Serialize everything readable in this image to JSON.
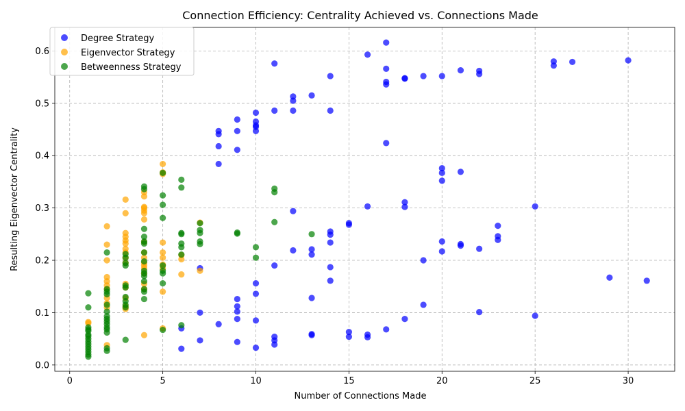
{
  "chart_data": {
    "type": "scatter",
    "title": "Connection Efficiency: Centrality Achieved vs. Connections Made",
    "xlabel": "Number of Connections Made",
    "ylabel": "Resulting Eigenvector Centrality",
    "xlim": [
      -0.8,
      32.5
    ],
    "ylim": [
      -0.012,
      0.645
    ],
    "xticks": [
      0,
      5,
      10,
      15,
      20,
      25,
      30
    ],
    "yticks": [
      0.0,
      0.1,
      0.2,
      0.3,
      0.4,
      0.5,
      0.6
    ],
    "xtick_labels": [
      "0",
      "5",
      "10",
      "15",
      "20",
      "25",
      "30"
    ],
    "ytick_labels": [
      "0.0",
      "0.1",
      "0.2",
      "0.3",
      "0.4",
      "0.5",
      "0.6"
    ],
    "grid": true,
    "legend_position": "top-left",
    "series": [
      {
        "name": "Degree Strategy",
        "color": "#0000ff",
        "points": [
          [
            6,
            0.031
          ],
          [
            6,
            0.07
          ],
          [
            7,
            0.047
          ],
          [
            7,
            0.1
          ],
          [
            7,
            0.185
          ],
          [
            8,
            0.078
          ],
          [
            8,
            0.384
          ],
          [
            8,
            0.418
          ],
          [
            8,
            0.441
          ],
          [
            8,
            0.447
          ],
          [
            9,
            0.044
          ],
          [
            9,
            0.088
          ],
          [
            9,
            0.102
          ],
          [
            9,
            0.112
          ],
          [
            9,
            0.126
          ],
          [
            9,
            0.411
          ],
          [
            9,
            0.447
          ],
          [
            9,
            0.469
          ],
          [
            10,
            0.033
          ],
          [
            10,
            0.085
          ],
          [
            10,
            0.136
          ],
          [
            10,
            0.156
          ],
          [
            10,
            0.447
          ],
          [
            10,
            0.455
          ],
          [
            10,
            0.458
          ],
          [
            10,
            0.465
          ],
          [
            10,
            0.482
          ],
          [
            11,
            0.039
          ],
          [
            11,
            0.047
          ],
          [
            11,
            0.054
          ],
          [
            11,
            0.19
          ],
          [
            11,
            0.486
          ],
          [
            11,
            0.576
          ],
          [
            12,
            0.219
          ],
          [
            12,
            0.294
          ],
          [
            12,
            0.486
          ],
          [
            12,
            0.505
          ],
          [
            12,
            0.513
          ],
          [
            13,
            0.057
          ],
          [
            13,
            0.059
          ],
          [
            13,
            0.128
          ],
          [
            13,
            0.211
          ],
          [
            13,
            0.221
          ],
          [
            13,
            0.515
          ],
          [
            14,
            0.161
          ],
          [
            14,
            0.187
          ],
          [
            14,
            0.234
          ],
          [
            14,
            0.249
          ],
          [
            14,
            0.255
          ],
          [
            14,
            0.486
          ],
          [
            14,
            0.552
          ],
          [
            15,
            0.054
          ],
          [
            15,
            0.063
          ],
          [
            15,
            0.268
          ],
          [
            15,
            0.271
          ],
          [
            16,
            0.053
          ],
          [
            16,
            0.058
          ],
          [
            16,
            0.303
          ],
          [
            16,
            0.593
          ],
          [
            17,
            0.068
          ],
          [
            17,
            0.424
          ],
          [
            17,
            0.536
          ],
          [
            17,
            0.541
          ],
          [
            17,
            0.566
          ],
          [
            17,
            0.616
          ],
          [
            18,
            0.088
          ],
          [
            18,
            0.302
          ],
          [
            18,
            0.311
          ],
          [
            18,
            0.547
          ],
          [
            18,
            0.548
          ],
          [
            19,
            0.115
          ],
          [
            19,
            0.2
          ],
          [
            19,
            0.552
          ],
          [
            20,
            0.217
          ],
          [
            20,
            0.236
          ],
          [
            20,
            0.352
          ],
          [
            20,
            0.367
          ],
          [
            20,
            0.376
          ],
          [
            20,
            0.552
          ],
          [
            21,
            0.228
          ],
          [
            21,
            0.231
          ],
          [
            21,
            0.369
          ],
          [
            21,
            0.563
          ],
          [
            22,
            0.101
          ],
          [
            22,
            0.222
          ],
          [
            22,
            0.556
          ],
          [
            22,
            0.562
          ],
          [
            23,
            0.239
          ],
          [
            23,
            0.246
          ],
          [
            23,
            0.266
          ],
          [
            25,
            0.094
          ],
          [
            25,
            0.303
          ],
          [
            26,
            0.572
          ],
          [
            26,
            0.58
          ],
          [
            27,
            0.579
          ],
          [
            29,
            0.167
          ],
          [
            30,
            0.582
          ],
          [
            31,
            0.161
          ]
        ]
      },
      {
        "name": "Eigenvector Strategy",
        "color": "#ffa500",
        "points": [
          [
            1,
            0.082
          ],
          [
            1,
            0.08
          ],
          [
            2,
            0.038
          ],
          [
            2,
            0.11
          ],
          [
            2,
            0.118
          ],
          [
            2,
            0.128
          ],
          [
            2,
            0.145
          ],
          [
            2,
            0.152
          ],
          [
            2,
            0.16
          ],
          [
            2,
            0.168
          ],
          [
            2,
            0.2
          ],
          [
            2,
            0.23
          ],
          [
            2,
            0.265
          ],
          [
            3,
            0.107
          ],
          [
            3,
            0.112
          ],
          [
            3,
            0.128
          ],
          [
            3,
            0.148
          ],
          [
            3,
            0.155
          ],
          [
            3,
            0.195
          ],
          [
            3,
            0.205
          ],
          [
            3,
            0.215
          ],
          [
            3,
            0.222
          ],
          [
            3,
            0.232
          ],
          [
            3,
            0.238
          ],
          [
            3,
            0.245
          ],
          [
            3,
            0.252
          ],
          [
            3,
            0.29
          ],
          [
            3,
            0.316
          ],
          [
            4,
            0.057
          ],
          [
            4,
            0.145
          ],
          [
            4,
            0.155
          ],
          [
            4,
            0.175
          ],
          [
            4,
            0.185
          ],
          [
            4,
            0.19
          ],
          [
            4,
            0.195
          ],
          [
            4,
            0.205
          ],
          [
            4,
            0.215
          ],
          [
            4,
            0.235
          ],
          [
            4,
            0.278
          ],
          [
            4,
            0.29
          ],
          [
            4,
            0.295
          ],
          [
            4,
            0.3
          ],
          [
            4,
            0.302
          ],
          [
            4,
            0.322
          ],
          [
            4,
            0.33
          ],
          [
            5,
            0.07
          ],
          [
            5,
            0.14
          ],
          [
            5,
            0.185
          ],
          [
            5,
            0.192
          ],
          [
            5,
            0.205
          ],
          [
            5,
            0.215
          ],
          [
            5,
            0.234
          ],
          [
            5,
            0.365
          ],
          [
            5,
            0.368
          ],
          [
            5,
            0.384
          ],
          [
            6,
            0.173
          ],
          [
            6,
            0.202
          ],
          [
            6,
            0.21
          ],
          [
            7,
            0.18
          ],
          [
            7,
            0.272
          ]
        ]
      },
      {
        "name": "Betweenness Strategy",
        "color": "#008000",
        "points": [
          [
            1,
            0.016
          ],
          [
            1,
            0.02
          ],
          [
            1,
            0.025
          ],
          [
            1,
            0.03
          ],
          [
            1,
            0.035
          ],
          [
            1,
            0.04
          ],
          [
            1,
            0.045
          ],
          [
            1,
            0.05
          ],
          [
            1,
            0.055
          ],
          [
            1,
            0.058
          ],
          [
            1,
            0.065
          ],
          [
            1,
            0.068
          ],
          [
            1,
            0.072
          ],
          [
            1,
            0.11
          ],
          [
            1,
            0.137
          ],
          [
            2,
            0.027
          ],
          [
            2,
            0.032
          ],
          [
            2,
            0.062
          ],
          [
            2,
            0.068
          ],
          [
            2,
            0.072
          ],
          [
            2,
            0.078
          ],
          [
            2,
            0.083
          ],
          [
            2,
            0.088
          ],
          [
            2,
            0.093
          ],
          [
            2,
            0.102
          ],
          [
            2,
            0.115
          ],
          [
            2,
            0.135
          ],
          [
            2,
            0.14
          ],
          [
            2,
            0.145
          ],
          [
            2,
            0.215
          ],
          [
            3,
            0.048
          ],
          [
            3,
            0.11
          ],
          [
            3,
            0.115
          ],
          [
            3,
            0.122
          ],
          [
            3,
            0.13
          ],
          [
            3,
            0.148
          ],
          [
            3,
            0.152
          ],
          [
            3,
            0.19
          ],
          [
            3,
            0.195
          ],
          [
            3,
            0.205
          ],
          [
            3,
            0.212
          ],
          [
            4,
            0.126
          ],
          [
            4,
            0.14
          ],
          [
            4,
            0.145
          ],
          [
            4,
            0.16
          ],
          [
            4,
            0.17
          ],
          [
            4,
            0.175
          ],
          [
            4,
            0.18
          ],
          [
            4,
            0.198
          ],
          [
            4,
            0.215
          ],
          [
            4,
            0.232
          ],
          [
            4,
            0.236
          ],
          [
            4,
            0.245
          ],
          [
            4,
            0.26
          ],
          [
            4,
            0.336
          ],
          [
            4,
            0.341
          ],
          [
            5,
            0.067
          ],
          [
            5,
            0.156
          ],
          [
            5,
            0.175
          ],
          [
            5,
            0.18
          ],
          [
            5,
            0.19
          ],
          [
            5,
            0.281
          ],
          [
            5,
            0.306
          ],
          [
            5,
            0.324
          ],
          [
            5,
            0.367
          ],
          [
            6,
            0.076
          ],
          [
            6,
            0.211
          ],
          [
            6,
            0.225
          ],
          [
            6,
            0.232
          ],
          [
            6,
            0.25
          ],
          [
            6,
            0.252
          ],
          [
            6,
            0.339
          ],
          [
            6,
            0.354
          ],
          [
            7,
            0.231
          ],
          [
            7,
            0.236
          ],
          [
            7,
            0.252
          ],
          [
            7,
            0.258
          ],
          [
            7,
            0.271
          ],
          [
            9,
            0.251
          ],
          [
            9,
            0.253
          ],
          [
            10,
            0.205
          ],
          [
            10,
            0.225
          ],
          [
            11,
            0.273
          ],
          [
            11,
            0.33
          ],
          [
            11,
            0.337
          ],
          [
            13,
            0.25
          ]
        ]
      }
    ]
  }
}
